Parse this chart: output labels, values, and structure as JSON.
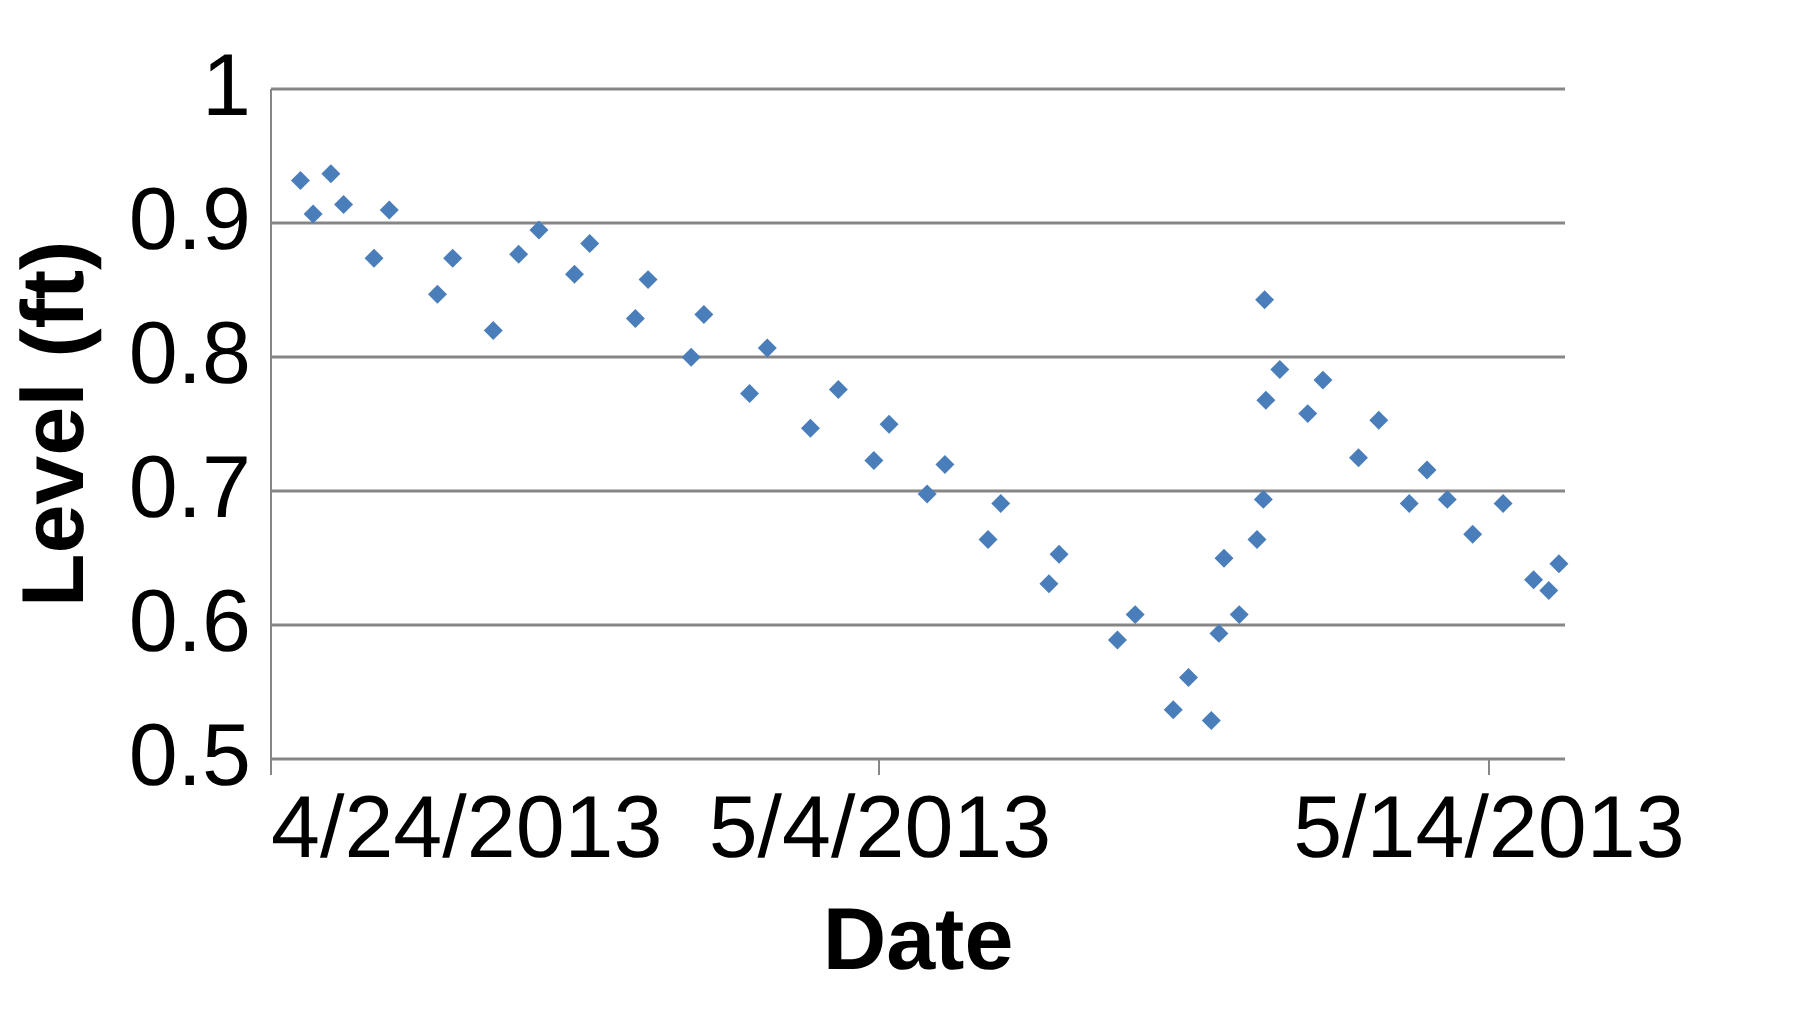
{
  "chart_data": {
    "type": "scatter",
    "xlabel": "Date",
    "ylabel": "Level (ft)",
    "x": [
      "2013-04-24T12:00",
      "2013-04-24T17:00",
      "2013-04-25T00:00",
      "2013-04-25T05:00",
      "2013-04-25T17:00",
      "2013-04-25T23:00",
      "2013-04-26T18:00",
      "2013-04-27T00:00",
      "2013-04-27T16:00",
      "2013-04-28T02:00",
      "2013-04-28T10:00",
      "2013-04-29T00:00",
      "2013-04-29T06:00",
      "2013-04-30T00:00",
      "2013-04-30T05:00",
      "2013-04-30T22:00",
      "2013-05-01T03:00",
      "2013-05-01T21:00",
      "2013-05-02T04:00",
      "2013-05-02T21:00",
      "2013-05-03T08:00",
      "2013-05-03T22:00",
      "2013-05-04T04:00",
      "2013-05-04T19:00",
      "2013-05-05T02:00",
      "2013-05-05T19:00",
      "2013-05-06T00:00",
      "2013-05-06T19:00",
      "2013-05-06T23:00",
      "2013-05-07T22:00",
      "2013-05-08T05:00",
      "2013-05-08T20:00",
      "2013-05-09T02:00",
      "2013-05-09T11:00",
      "2013-05-09T14:00",
      "2013-05-09T16:00",
      "2013-05-09T22:00",
      "2013-05-10T05:00",
      "2013-05-10T07:30",
      "2013-05-10T08:00",
      "2013-05-10T08:30",
      "2013-05-10T14:00",
      "2013-05-11T01:00",
      "2013-05-11T07:00",
      "2013-05-11T21:00",
      "2013-05-12T05:00",
      "2013-05-12T17:00",
      "2013-05-13T00:00",
      "2013-05-13T08:00",
      "2013-05-13T18:00",
      "2013-05-14T06:00",
      "2013-05-14T18:00",
      "2013-05-15T00:00",
      "2013-05-15T04:00"
    ],
    "series": [
      {
        "color": "#4a7ebb",
        "values": [
          0.931,
          0.906,
          0.936,
          0.913,
          0.873,
          0.909,
          0.846,
          0.873,
          0.819,
          0.876,
          0.894,
          0.861,
          0.884,
          0.828,
          0.857,
          0.799,
          0.831,
          0.772,
          0.806,
          0.746,
          0.775,
          0.722,
          0.749,
          0.697,
          0.719,
          0.663,
          0.69,
          0.63,
          0.652,
          0.588,
          0.607,
          0.536,
          0.56,
          0.528,
          0.593,
          0.649,
          0.607,
          0.663,
          0.693,
          0.842,
          0.767,
          0.79,
          0.757,
          0.782,
          0.724,
          0.752,
          0.69,
          0.715,
          0.693,
          0.667,
          0.69,
          0.633,
          0.625,
          0.645
        ]
      }
    ],
    "xlim": [
      "2013-04-24T00:00",
      "2013-05-15T06:00"
    ],
    "xticks": [
      {
        "value": "2013-04-24T00:00",
        "label": "4/24/2013"
      },
      {
        "value": "2013-05-04T00:00",
        "label": "5/4/2013"
      },
      {
        "value": "2013-05-14T00:00",
        "label": "5/14/2013"
      }
    ],
    "ylim": [
      0.5,
      1
    ],
    "yticks": [
      0.5,
      0.6,
      0.7,
      0.8,
      0.9,
      {
        "value": 1,
        "label": "1"
      }
    ],
    "grid": "y",
    "marker": "diamond"
  }
}
